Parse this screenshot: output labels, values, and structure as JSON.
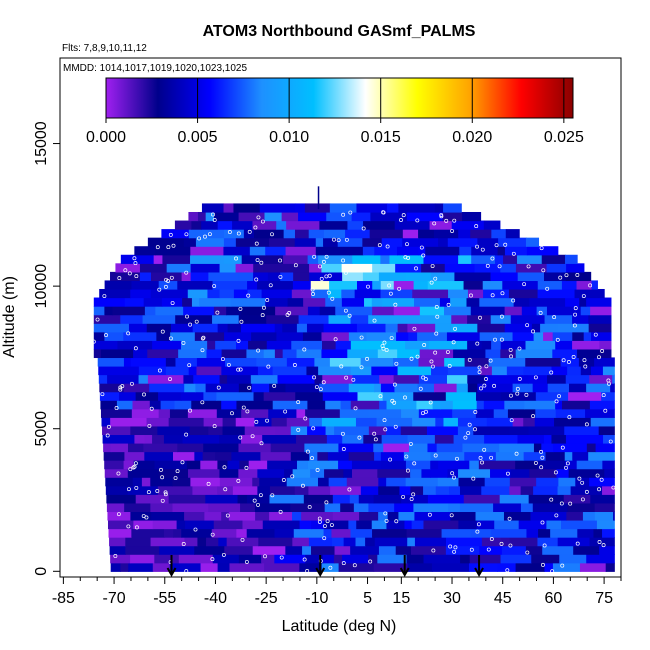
{
  "chart_data": {
    "type": "heatmap",
    "title": "ATOM3 Northbound GASmf_PALMS",
    "subtitles": [
      "Flts: 7,8,9,10,11,12",
      "MMDD: 1014,1017,1019,1020,1023,1025"
    ],
    "xlabel": "Latitude (deg N)",
    "ylabel": "Altitude (m)",
    "x_ticks": [
      -85,
      -70,
      -55,
      -40,
      -25,
      -10,
      5,
      15,
      30,
      45,
      60,
      75
    ],
    "y_ticks": [
      0,
      5000,
      10000,
      15000
    ],
    "xlim": [
      -86,
      80
    ],
    "ylim": [
      -200,
      18000
    ],
    "colorbar": {
      "ticks": [
        "0.000",
        "0.005",
        "0.010",
        "0.015",
        "0.020",
        "0.025"
      ],
      "range": [
        0,
        0.0255
      ],
      "colors": [
        "#a020f0",
        "#00008b",
        "#0000ff",
        "#1e90ff",
        "#00bfff",
        "#ffffff",
        "#ffff00",
        "#ffa500",
        "#ff0000",
        "#8b0000"
      ]
    },
    "arrows_at_latitude": [
      -53,
      -9,
      16,
      38
    ]
  }
}
